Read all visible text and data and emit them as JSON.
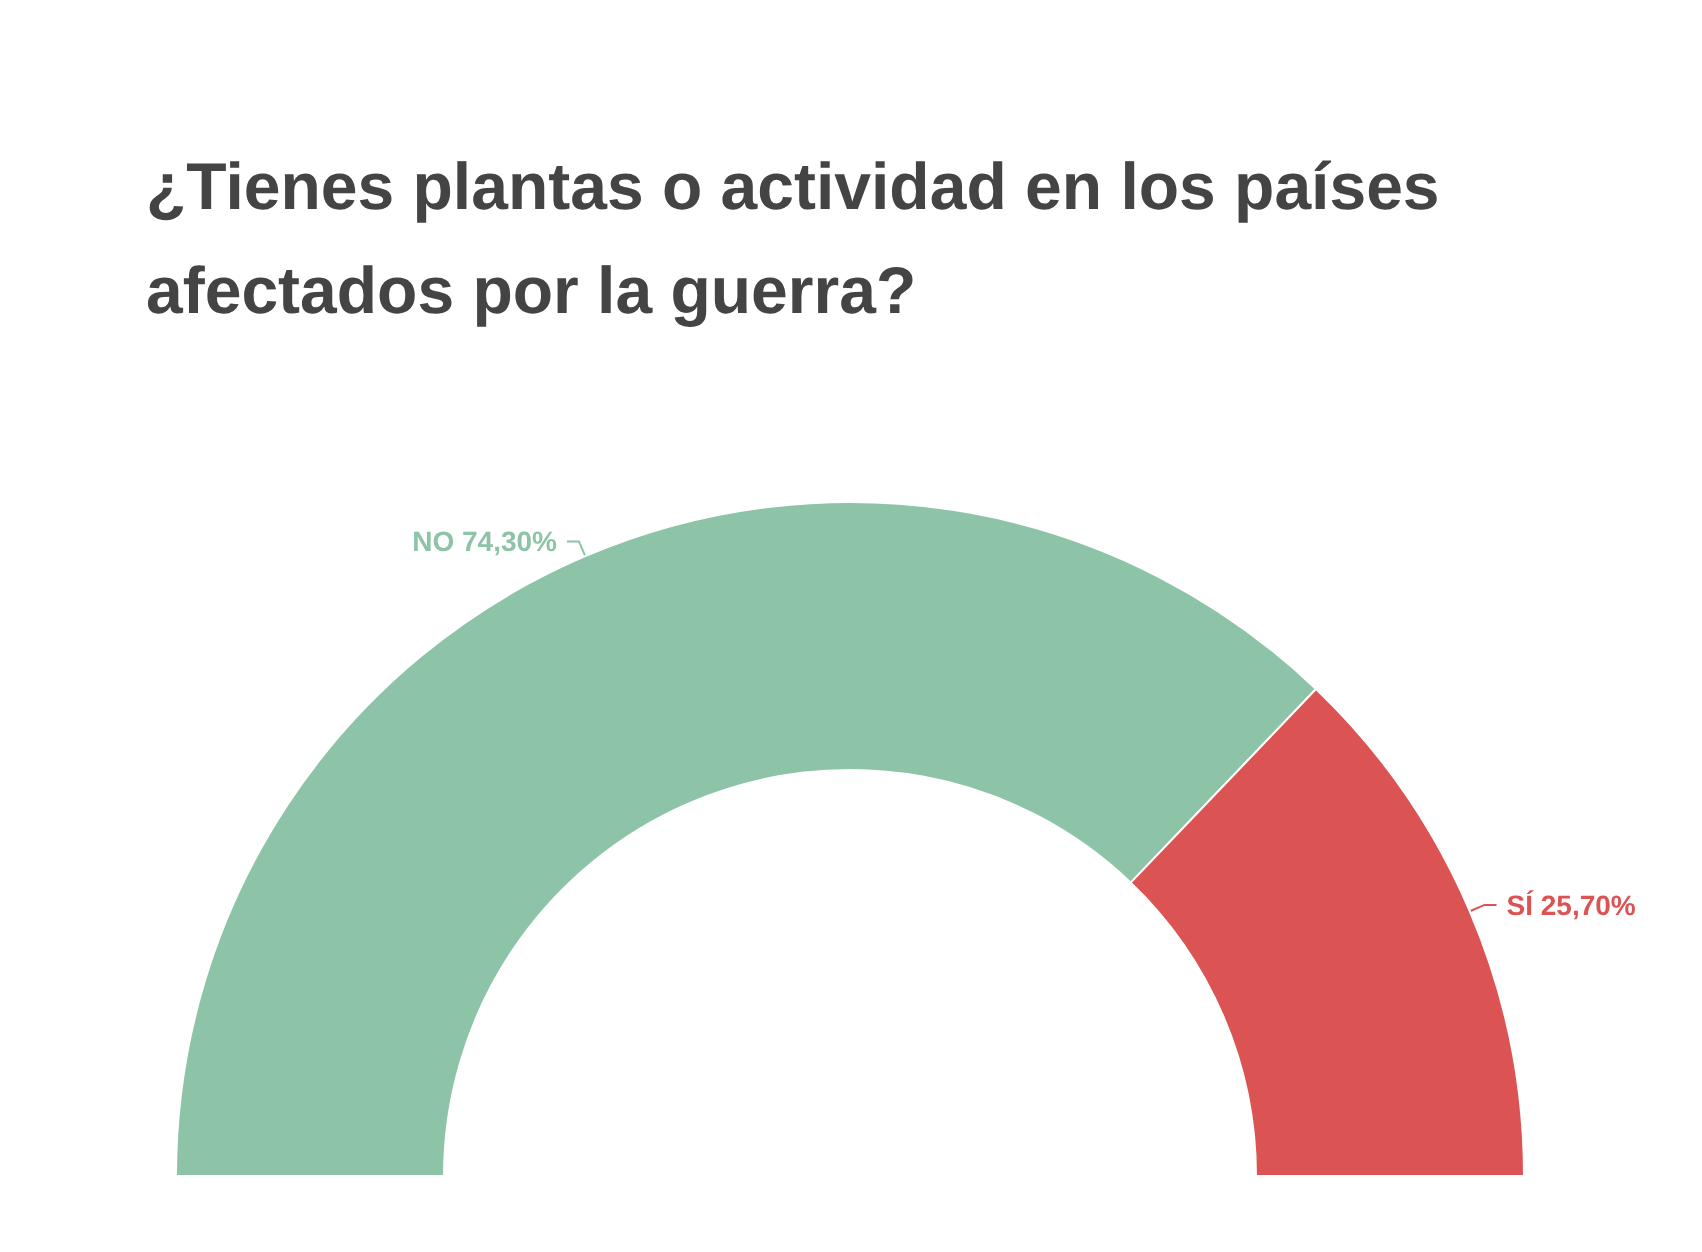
{
  "chart_data": {
    "type": "donut",
    "title": "¿Tienes plantas o actividad en los países afectados por la guerra?",
    "categories": [
      "NO",
      "SÍ"
    ],
    "values": [
      74.3,
      25.7
    ],
    "colors": [
      "#8dc3a7",
      "#dc5354"
    ],
    "value_labels": [
      "74,30%",
      "25,70%"
    ],
    "legend": false
  }
}
